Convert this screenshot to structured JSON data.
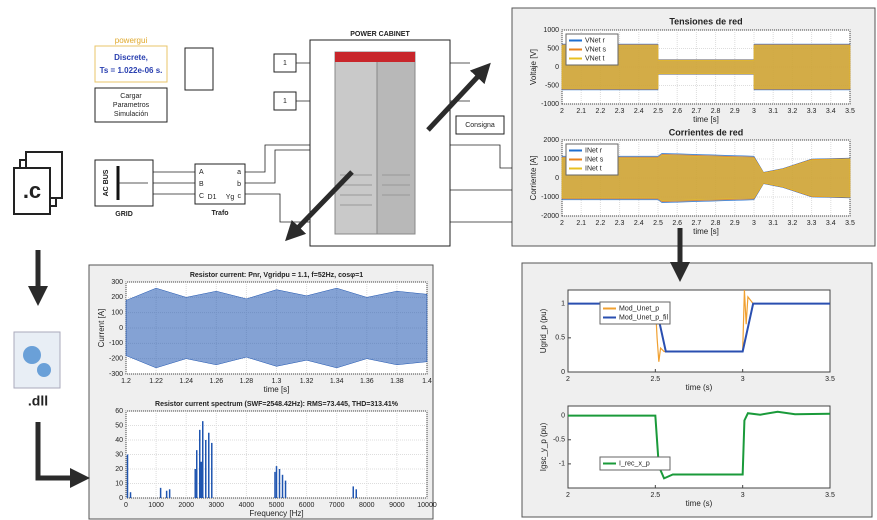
{
  "simulink": {
    "powergui": "powergui",
    "discrete": "Discrete,",
    "ts": "Ts = 1.022e-06 s.",
    "load_button": [
      "Cargar",
      "Parametros",
      "Simulación"
    ],
    "constants": [
      "1",
      "1"
    ],
    "grid_block": {
      "bus": "AC BUS",
      "label": "GRID"
    },
    "trafo": {
      "label": "Trafo",
      "ports_in": [
        "A",
        "B",
        "C"
      ],
      "ports_out": [
        "a",
        "b",
        "c"
      ],
      "windings": [
        "D1",
        "Yg"
      ]
    },
    "cabinet": "POWER CABINET",
    "consigna": "Consigna"
  },
  "files": {
    "source": ".c",
    "library": ".dll"
  },
  "charts": [
    {
      "type": "wave",
      "title": "Tensiones de red",
      "xlabel": "time [s]",
      "ylabel": "Voltaje [V]",
      "xlim": [
        2,
        3.5
      ],
      "xticks": [
        2,
        2.1,
        2.2,
        2.3,
        2.4,
        2.5,
        2.6,
        2.7,
        2.8,
        2.9,
        3,
        3.1,
        3.2,
        3.3,
        3.4,
        3.5
      ],
      "ylim": [
        -1000,
        1000
      ],
      "yticks": [
        -1000,
        -500,
        0,
        500,
        1000
      ],
      "grid": true,
      "legend": "upper left",
      "series": [
        {
          "name": "VNet r",
          "color": "#1f6fd0",
          "x": [
            2,
            2.5,
            2.5,
            3,
            3,
            3.5
          ],
          "values": [
            620,
            620,
            200,
            200,
            620,
            620
          ]
        },
        {
          "name": "VNet s",
          "color": "#e8821e",
          "x": [
            2,
            2.5,
            2.5,
            3,
            3,
            3.5
          ],
          "values": [
            600,
            600,
            190,
            190,
            600,
            600
          ]
        },
        {
          "name": "VNet t",
          "color": "#e8c020",
          "x": [
            2,
            2.5,
            2.5,
            3,
            3,
            3.5
          ],
          "values": [
            580,
            580,
            180,
            180,
            580,
            580
          ]
        }
      ]
    },
    {
      "type": "wave",
      "title": "Corrientes de red",
      "xlabel": "time [s]",
      "ylabel": "Corriente [A]",
      "xlim": [
        2,
        3.5
      ],
      "xticks": [
        2,
        2.1,
        2.2,
        2.3,
        2.4,
        2.5,
        2.6,
        2.7,
        2.8,
        2.9,
        3,
        3.1,
        3.2,
        3.3,
        3.4,
        3.5
      ],
      "ylim": [
        -2000,
        2000
      ],
      "yticks": [
        -2000,
        -1000,
        0,
        1000,
        2000
      ],
      "grid": true,
      "legend": "upper left",
      "series": [
        {
          "name": "INet r",
          "color": "#1f6fd0",
          "x": [
            2,
            2.5,
            2.52,
            3,
            3.05,
            3.15,
            3.3,
            3.5
          ],
          "values": [
            1150,
            1150,
            1300,
            1150,
            300,
            500,
            1000,
            1050
          ]
        },
        {
          "name": "INet s",
          "color": "#e8821e",
          "x": [
            2,
            2.5,
            2.52,
            3,
            3.05,
            3.15,
            3.3,
            3.5
          ],
          "values": [
            1100,
            1100,
            1250,
            1100,
            280,
            480,
            980,
            1020
          ]
        },
        {
          "name": "INet t",
          "color": "#e8c020",
          "x": [
            2,
            2.5,
            2.52,
            3,
            3.05,
            3.15,
            3.3,
            3.5
          ],
          "values": [
            1050,
            1050,
            1200,
            1050,
            260,
            460,
            950,
            1000
          ]
        }
      ]
    },
    {
      "type": "line",
      "xlabel": "time (s)",
      "ylabel": "Ugrid_p (pu)",
      "xlim": [
        2,
        3.5
      ],
      "xticks": [
        2,
        2.5,
        3,
        3.5
      ],
      "ylim": [
        0,
        1.2
      ],
      "yticks": [
        0,
        0.5,
        1
      ],
      "grid": false,
      "legend": "center left",
      "series": [
        {
          "name": "Mod_Unet_p",
          "color": "#f0a030",
          "x": [
            2,
            2.5,
            2.51,
            2.52,
            2.53,
            2.55,
            3,
            3.01,
            3.02,
            3.03,
            3.06,
            3.5
          ],
          "values": [
            1,
            1,
            0.5,
            0.15,
            0.35,
            0.3,
            0.3,
            1.2,
            0.7,
            1.1,
            1,
            1
          ]
        },
        {
          "name": "Mod_Unet_p_fil",
          "color": "#2a4fb0",
          "x": [
            2,
            2.5,
            2.56,
            3,
            3.06,
            3.5
          ],
          "values": [
            1,
            1,
            0.3,
            0.3,
            1,
            1
          ]
        }
      ]
    },
    {
      "type": "line",
      "xlabel": "time (s)",
      "ylabel": "Igsc_y_p (pu)",
      "xlim": [
        2,
        3.5
      ],
      "xticks": [
        2,
        2.5,
        3,
        3.5
      ],
      "ylim": [
        -1.5,
        0.2
      ],
      "yticks": [
        -1,
        -0.5,
        0
      ],
      "grid": false,
      "legend": "lower left",
      "series": [
        {
          "name": "I_rec_x_p",
          "color": "#1a9a3a",
          "x": [
            2,
            2.5,
            2.52,
            2.55,
            2.6,
            3,
            3.01,
            3.03,
            3.1,
            3.2,
            3.3,
            3.5
          ],
          "values": [
            0,
            0,
            -1.05,
            -1.3,
            -1.22,
            -1.22,
            -0.1,
            0.05,
            0.02,
            0.08,
            0.03,
            0.04
          ]
        }
      ]
    },
    {
      "type": "wave",
      "title": "Resistor current: Pnr, Vgridpu = 1.1, f=52Hz, cosφ=1",
      "xlabel": "time [s]",
      "ylabel": "Current [A]",
      "xlim": [
        1.2,
        1.4
      ],
      "xticks": [
        1.2,
        1.22,
        1.24,
        1.26,
        1.28,
        1.3,
        1.32,
        1.34,
        1.36,
        1.38,
        1.4
      ],
      "ylim": [
        -300,
        300
      ],
      "yticks": [
        -300,
        -200,
        -100,
        0,
        100,
        200,
        300
      ],
      "grid": true,
      "series": [
        {
          "color": "#1f55b0",
          "x": [
            1.2,
            1.22,
            1.24,
            1.26,
            1.28,
            1.3,
            1.32,
            1.34,
            1.36,
            1.38,
            1.4
          ],
          "values": [
            180,
            260,
            200,
            240,
            190,
            250,
            210,
            260,
            200,
            240,
            220
          ]
        }
      ]
    },
    {
      "type": "stem",
      "title": "Resistor current spectrum (SWF=2548.42Hz): RMS=73.445, THD=313.41%",
      "xlabel": "Frequency [Hz]",
      "xlim": [
        0,
        10000
      ],
      "xticks": [
        0,
        1000,
        2000,
        3000,
        4000,
        5000,
        6000,
        7000,
        8000,
        9000,
        10000
      ],
      "ylim": [
        0,
        60
      ],
      "yticks": [
        0,
        10,
        20,
        30,
        40,
        50,
        60
      ],
      "grid": true,
      "series": [
        {
          "color": "#1f55b0",
          "x": [
            50,
            150,
            1150,
            1350,
            1450,
            2300,
            2350,
            2450,
            2500,
            2550,
            2650,
            2750,
            2850,
            4950,
            5000,
            5100,
            5200,
            5300,
            7550,
            7650
          ],
          "values": [
            30,
            4,
            7,
            5,
            6,
            20,
            33,
            47,
            25,
            53,
            40,
            45,
            38,
            18,
            22,
            20,
            16,
            12,
            8,
            6
          ]
        }
      ]
    }
  ]
}
